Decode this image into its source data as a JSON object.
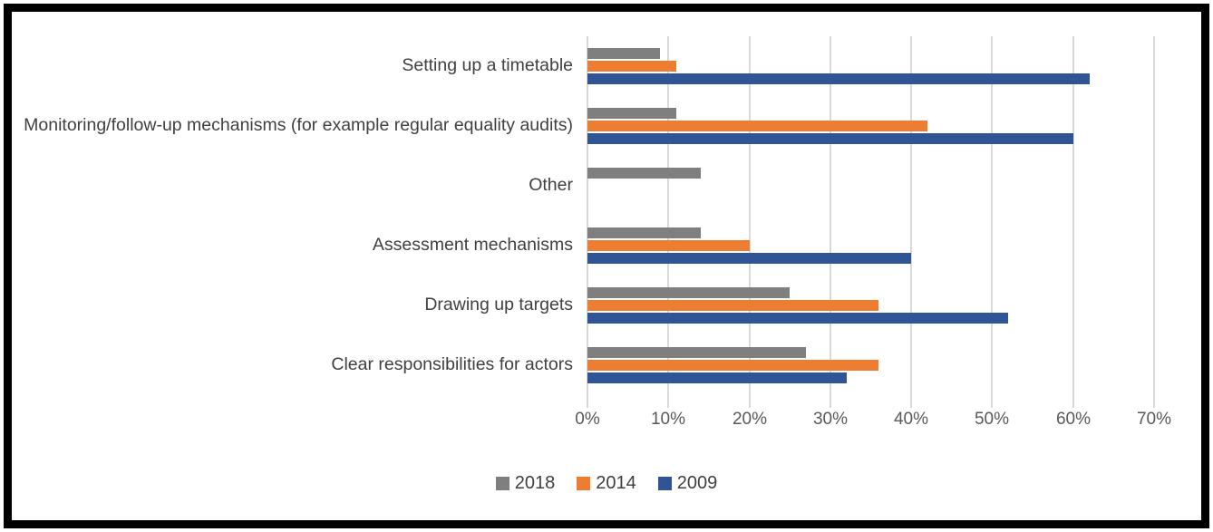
{
  "chart_data": {
    "type": "bar",
    "orientation": "horizontal",
    "title": "",
    "categories": [
      "Setting up a timetable",
      "Monitoring/follow-up mechanisms (for example regular equality audits)",
      "Other",
      "Assessment mechanisms",
      "Drawing up targets",
      "Clear responsibilities for actors"
    ],
    "series": [
      {
        "name": "2018",
        "color": "#7f7f7f",
        "values": [
          9,
          11,
          14,
          14,
          25,
          27
        ]
      },
      {
        "name": "2014",
        "color": "#ed7d31",
        "values": [
          11,
          42,
          0,
          20,
          36,
          36
        ]
      },
      {
        "name": "2009",
        "color": "#2f5597",
        "values": [
          62,
          60,
          0,
          40,
          52,
          32
        ]
      }
    ],
    "x_axis": {
      "min": 0,
      "max": 70,
      "step": 10,
      "tick_labels": [
        "0%",
        "10%",
        "20%",
        "30%",
        "40%",
        "50%",
        "60%",
        "70%"
      ]
    },
    "legend": {
      "position": "bottom",
      "entries": [
        "2018",
        "2014",
        "2009"
      ]
    },
    "grid": true
  },
  "colors": {
    "gridline": "#d9d9d9",
    "axis_text": "#595959",
    "category_text": "#404040",
    "frame": "#000000",
    "background": "#ffffff",
    "series_2018": "#7f7f7f",
    "series_2014": "#ed7d31",
    "series_2009": "#2f5597"
  }
}
